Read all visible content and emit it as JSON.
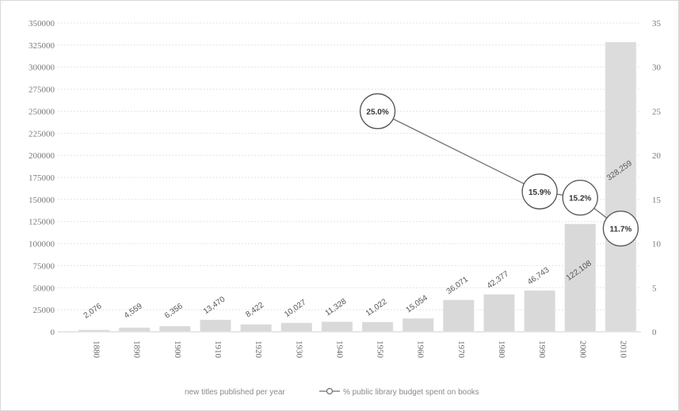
{
  "chart_data": {
    "type": "bar",
    "categories": [
      "1880",
      "1890",
      "1900",
      "1910",
      "1920",
      "1930",
      "1940",
      "1950",
      "1960",
      "1970",
      "1980",
      "1990",
      "2000",
      "2010"
    ],
    "series": [
      {
        "name": "new titles published per year",
        "type": "bar",
        "axis": "left",
        "values": [
          2076,
          4559,
          6356,
          13470,
          8422,
          10027,
          11328,
          11022,
          15054,
          36071,
          42377,
          46743,
          122108,
          328259
        ],
        "labels": [
          "2,076",
          "4,559",
          "6,356",
          "13,470",
          "8,422",
          "10,027",
          "11,328",
          "11,022",
          "15,054",
          "36,071",
          "42,377",
          "46,743",
          "122,108",
          "328,259"
        ],
        "color": "#d9d9d9"
      },
      {
        "name": "% public library budget spent on books",
        "type": "line",
        "axis": "right",
        "points": [
          {
            "x": "1950",
            "y": 25.0,
            "label": "25.0%"
          },
          {
            "x": "1990",
            "y": 15.9,
            "label": "15.9%"
          },
          {
            "x": "2000",
            "y": 15.2,
            "label": "15.2%"
          },
          {
            "x": "2010",
            "y": 11.7,
            "label": "11.7%"
          }
        ],
        "color": "#6f6f6f"
      }
    ],
    "y_left": {
      "range": [
        0,
        350000
      ],
      "ticks": [
        0,
        25000,
        50000,
        75000,
        100000,
        125000,
        150000,
        175000,
        200000,
        225000,
        250000,
        275000,
        300000,
        325000,
        350000
      ]
    },
    "y_right": {
      "range": [
        0,
        35
      ],
      "ticks": [
        0,
        5,
        10,
        15,
        20,
        25,
        30,
        35
      ]
    },
    "grid": true,
    "legend_position": "bottom"
  }
}
